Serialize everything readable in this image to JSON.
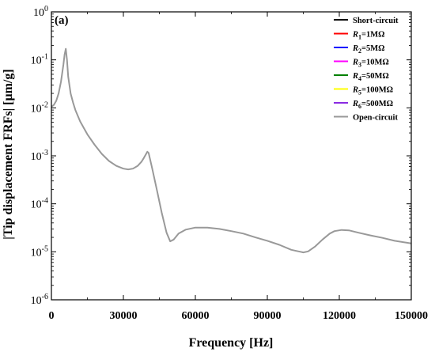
{
  "chart_data": {
    "type": "line",
    "panel_label": "(a)",
    "xlabel": "Frequency [Hz]",
    "ylabel": "|Tip displacement FRFs| [μm/g]",
    "xlim": [
      0,
      150000
    ],
    "ylim": [
      1e-06,
      1
    ],
    "yscale": "log",
    "x_ticks": [
      {
        "value": 0,
        "label": "0"
      },
      {
        "value": 30000,
        "label": "30000"
      },
      {
        "value": 60000,
        "label": "60000"
      },
      {
        "value": 90000,
        "label": "90000"
      },
      {
        "value": 120000,
        "label": "120000"
      },
      {
        "value": 150000,
        "label": "150000"
      }
    ],
    "y_ticks": [
      {
        "value": 1,
        "base": "10",
        "exp": "0"
      },
      {
        "value": 0.1,
        "base": "10",
        "exp": "-1"
      },
      {
        "value": 0.01,
        "base": "10",
        "exp": "-2"
      },
      {
        "value": 0.001,
        "base": "10",
        "exp": "-3"
      },
      {
        "value": 0.0001,
        "base": "10",
        "exp": "-4"
      },
      {
        "value": 1e-05,
        "base": "10",
        "exp": "-5"
      },
      {
        "value": 1e-06,
        "base": "10",
        "exp": "-6"
      }
    ],
    "grid": false,
    "legend_position": "top-right",
    "legend": [
      {
        "prefix": "",
        "sub": "",
        "suffix": "Short-circuit",
        "color": "#000000"
      },
      {
        "prefix": "R",
        "sub": "1",
        "suffix": "=1MΩ",
        "color": "#ff0000"
      },
      {
        "prefix": "R",
        "sub": "2",
        "suffix": "=5MΩ",
        "color": "#0000ff"
      },
      {
        "prefix": "R",
        "sub": "3",
        "suffix": "=10MΩ",
        "color": "#ff00ff"
      },
      {
        "prefix": "R",
        "sub": "4",
        "suffix": "=50MΩ",
        "color": "#008000"
      },
      {
        "prefix": "R",
        "sub": "5",
        "suffix": "=100MΩ",
        "color": "#ffff00"
      },
      {
        "prefix": "R",
        "sub": "6",
        "suffix": "=500MΩ",
        "color": "#8a2be2"
      },
      {
        "prefix": "",
        "sub": "",
        "suffix": "Open-circuit",
        "color": "#999999"
      }
    ],
    "visible_curve_color": "#999999",
    "series_points": [
      [
        0,
        0.0105
      ],
      [
        1000,
        0.0115
      ],
      [
        2000,
        0.014
      ],
      [
        3000,
        0.02
      ],
      [
        4000,
        0.035
      ],
      [
        5000,
        0.08
      ],
      [
        5500,
        0.13
      ],
      [
        6000,
        0.17
      ],
      [
        6500,
        0.1
      ],
      [
        7000,
        0.045
      ],
      [
        8000,
        0.02
      ],
      [
        9000,
        0.013
      ],
      [
        10000,
        0.009
      ],
      [
        12000,
        0.0052
      ],
      [
        15000,
        0.0028
      ],
      [
        18000,
        0.0017
      ],
      [
        21000,
        0.0011
      ],
      [
        24000,
        0.00078
      ],
      [
        27000,
        0.00062
      ],
      [
        30000,
        0.00054
      ],
      [
        32000,
        0.00052
      ],
      [
        34000,
        0.00054
      ],
      [
        36000,
        0.00062
      ],
      [
        37500,
        0.00075
      ],
      [
        38500,
        0.0009
      ],
      [
        39500,
        0.0011
      ],
      [
        40000,
        0.00122
      ],
      [
        40500,
        0.00115
      ],
      [
        41000,
        0.0009
      ],
      [
        42000,
        0.00055
      ],
      [
        44000,
        0.00019
      ],
      [
        46000,
        6.5e-05
      ],
      [
        48000,
        2.5e-05
      ],
      [
        49500,
        1.65e-05
      ],
      [
        51000,
        1.8e-05
      ],
      [
        53000,
        2.4e-05
      ],
      [
        56000,
        2.9e-05
      ],
      [
        60000,
        3.2e-05
      ],
      [
        65000,
        3.2e-05
      ],
      [
        70000,
        3e-05
      ],
      [
        75000,
        2.7e-05
      ],
      [
        80000,
        2.4e-05
      ],
      [
        85000,
        2e-05
      ],
      [
        90000,
        1.7e-05
      ],
      [
        95000,
        1.4e-05
      ],
      [
        100000,
        1.1e-05
      ],
      [
        103000,
        1.02e-05
      ],
      [
        105000,
        9.7e-06
      ],
      [
        107000,
        1.02e-05
      ],
      [
        110000,
        1.3e-05
      ],
      [
        113000,
        1.8e-05
      ],
      [
        116000,
        2.4e-05
      ],
      [
        118000,
        2.7e-05
      ],
      [
        121000,
        2.85e-05
      ],
      [
        124000,
        2.8e-05
      ],
      [
        128000,
        2.5e-05
      ],
      [
        133000,
        2.2e-05
      ],
      [
        138000,
        1.95e-05
      ],
      [
        143000,
        1.7e-05
      ],
      [
        148000,
        1.55e-05
      ],
      [
        150000,
        1.5e-05
      ]
    ]
  }
}
